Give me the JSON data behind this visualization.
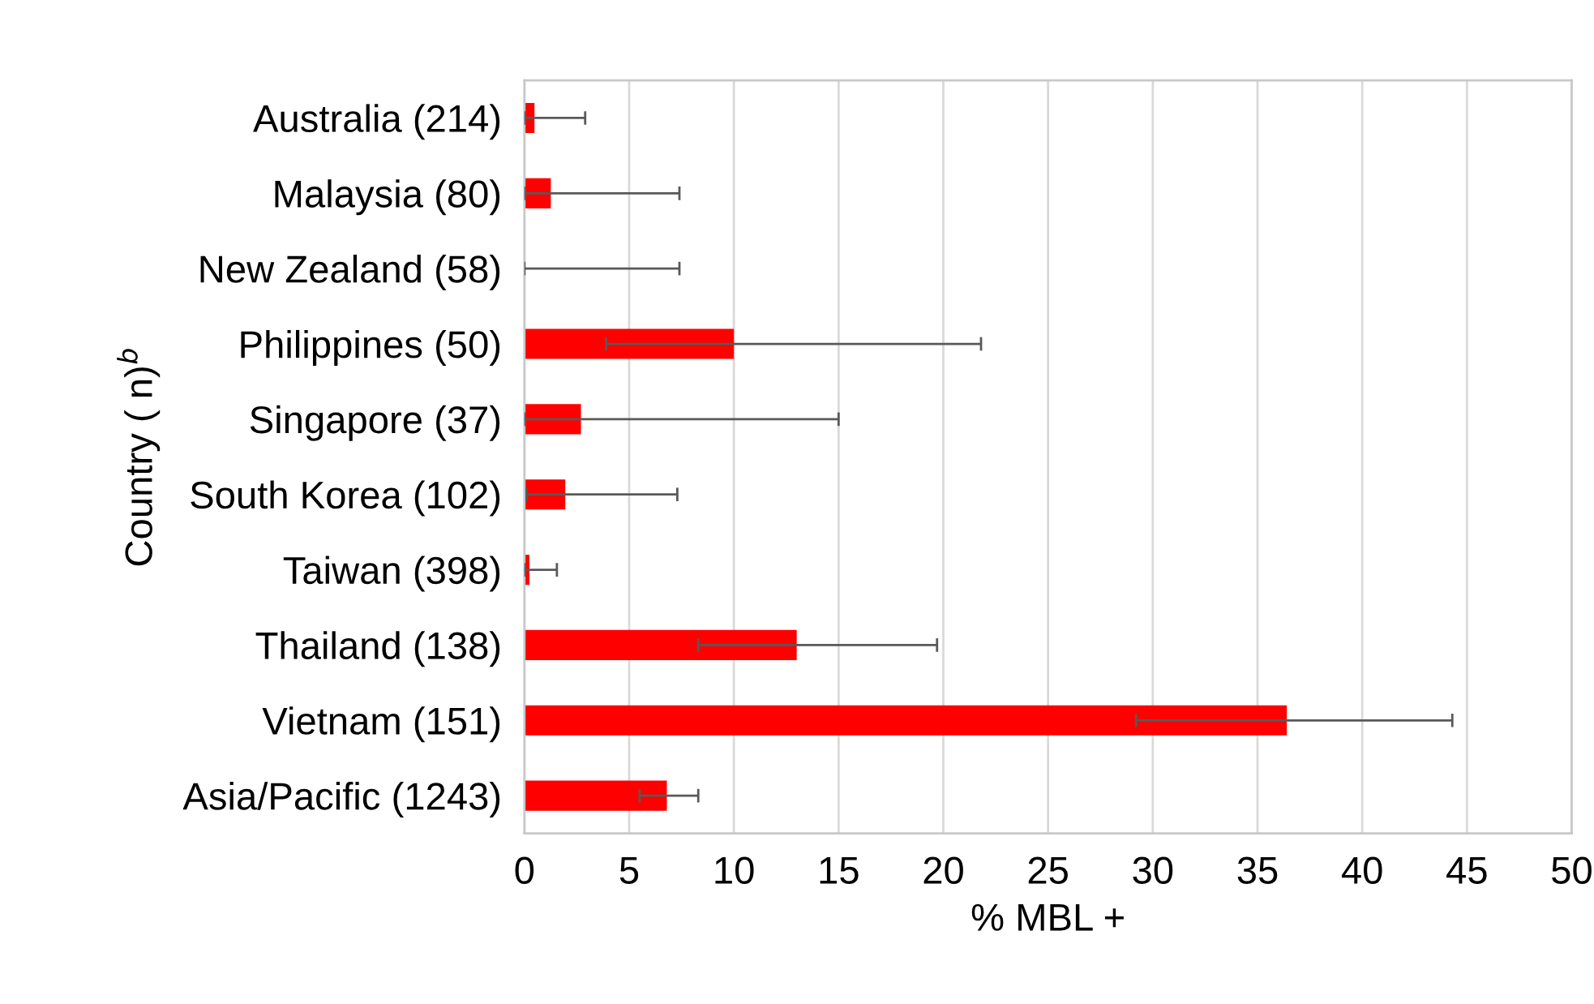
{
  "chart_data": {
    "type": "bar",
    "orientation": "horizontal",
    "categories": [
      "Australia (214)",
      "Malaysia (80)",
      "New Zealand (58)",
      "Philippines (50)",
      "Singapore (37)",
      "South Korea (102)",
      "Taiwan (398)",
      "Thailand (138)",
      "Vietnam (151)",
      "Asia/Pacific (1243)"
    ],
    "values": [
      0.48,
      1.26,
      0,
      10.0,
      2.7,
      1.95,
      0.24,
      13.0,
      36.4,
      6.8
    ],
    "errors": [
      [
        0,
        2.9
      ],
      [
        0,
        7.4
      ],
      [
        0,
        7.4
      ],
      [
        3.9,
        21.8
      ],
      [
        0,
        15.0
      ],
      [
        0.1,
        7.3
      ],
      [
        0,
        1.55
      ],
      [
        8.3,
        19.7
      ],
      [
        29.2,
        44.3
      ],
      [
        5.5,
        8.3
      ]
    ],
    "color": "#ff0000",
    "xlabel": "% MBL +",
    "ylabel": "Country ( n)$^{b}$",
    "xlim": [
      0,
      50
    ],
    "xticks": [
      0,
      5,
      10,
      15,
      20,
      25,
      30,
      35,
      40,
      45,
      50
    ],
    "grid": "x"
  }
}
